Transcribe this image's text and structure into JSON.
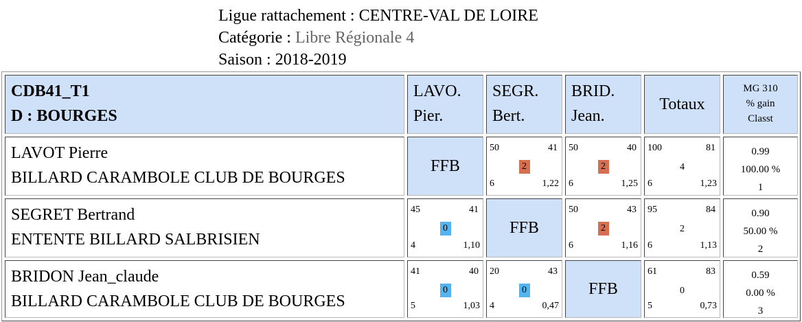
{
  "header": {
    "ligue_label": "Ligue rattachement : ",
    "ligue_value": "CENTRE-VAL DE LOIRE",
    "categorie_label": "Catégorie : ",
    "categorie_value": "Libre Régionale 4",
    "saison_label": "Saison : ",
    "saison_value": "2018-2019"
  },
  "table": {
    "group_code": "CDB41_T1",
    "group_name": "D : BOURGES",
    "columns": [
      {
        "line1": "LAVO.",
        "line2": "Pier."
      },
      {
        "line1": "SEGR.",
        "line2": "Bert."
      },
      {
        "line1": "BRID.",
        "line2": "Jean."
      }
    ],
    "totals_header": "Totaux",
    "mg_header": {
      "line1": "MG 310",
      "line2": "% gain",
      "line3": "Classt"
    },
    "players": [
      {
        "name": "LAVOT Pierre",
        "club": "BILLARD CARAMBOLE CLUB DE BOURGES",
        "matches": [
          {
            "self": "FFB"
          },
          {
            "points": "50",
            "opp": "41",
            "result": "2",
            "innings": "6",
            "avg": "1,22",
            "win": true
          },
          {
            "points": "50",
            "opp": "40",
            "result": "2",
            "innings": "6",
            "avg": "1,25",
            "win": true
          }
        ],
        "totals": {
          "points": "100",
          "opp": "81",
          "result": "4",
          "innings": "6",
          "avg": "1,23"
        },
        "mg": "0.99",
        "pct": "100.00 %",
        "rank": "1"
      },
      {
        "name": "SEGRET Bertrand",
        "club": "ENTENTE BILLARD SALBRISIEN",
        "matches": [
          {
            "points": "45",
            "opp": "41",
            "result": "0",
            "innings": "4",
            "avg": "1,10",
            "win": false
          },
          {
            "self": "FFB"
          },
          {
            "points": "50",
            "opp": "43",
            "result": "2",
            "innings": "6",
            "avg": "1,16",
            "win": true
          }
        ],
        "totals": {
          "points": "95",
          "opp": "84",
          "result": "2",
          "innings": "6",
          "avg": "1,13"
        },
        "mg": "0.90",
        "pct": "50.00 %",
        "rank": "2"
      },
      {
        "name": "BRIDON Jean_claude",
        "club": "BILLARD CARAMBOLE CLUB DE BOURGES",
        "matches": [
          {
            "points": "41",
            "opp": "40",
            "result": "0",
            "innings": "5",
            "avg": "1,03",
            "win": false
          },
          {
            "points": "20",
            "opp": "43",
            "result": "0",
            "innings": "4",
            "avg": "0,47",
            "win": false
          },
          {
            "self": "FFB"
          }
        ],
        "totals": {
          "points": "61",
          "opp": "83",
          "result": "0",
          "innings": "5",
          "avg": "0,73"
        },
        "mg": "0.59",
        "pct": "0.00 %",
        "rank": "3"
      }
    ]
  }
}
